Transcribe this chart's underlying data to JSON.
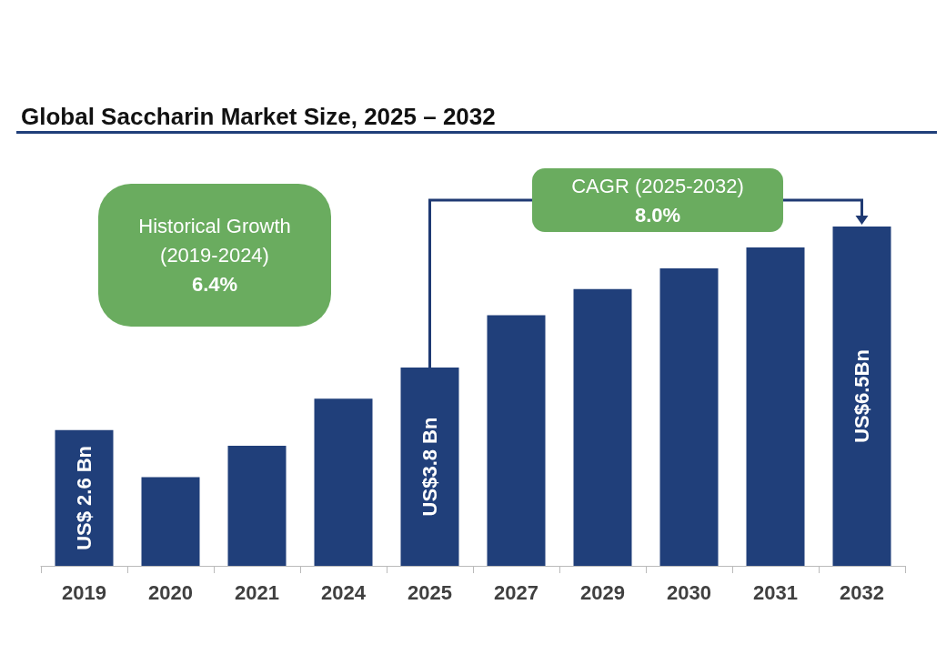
{
  "chart_data": {
    "type": "bar",
    "title": "Global Saccharin Market Size, 2025 – 2032",
    "categories": [
      "2019",
      "2020",
      "2021",
      "2024",
      "2025",
      "2027",
      "2029",
      "2030",
      "2031",
      "2032"
    ],
    "values": [
      2.6,
      1.7,
      2.3,
      3.2,
      3.8,
      4.8,
      5.3,
      5.7,
      6.1,
      6.5
    ],
    "value_labels": [
      "US$ 2.6 Bn",
      null,
      null,
      null,
      "US$3.8 Bn",
      null,
      null,
      null,
      null,
      "US$6.5Bn"
    ],
    "ylim": [
      0,
      6.5
    ],
    "color": "#203f7a",
    "annotations": [
      "Historical Growth\n(2019-2024)\n6.4%",
      "CAGR (2025-2032)\n8.0%"
    ]
  }
}
